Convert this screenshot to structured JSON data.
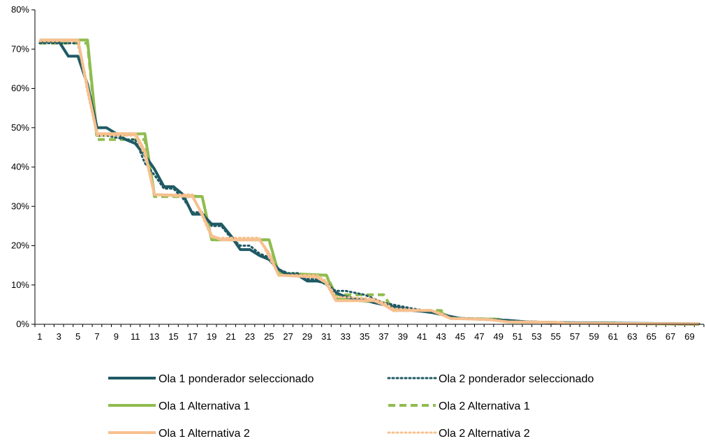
{
  "chart_data": {
    "type": "line",
    "title": "",
    "xlabel": "",
    "ylabel": "",
    "x_range": [
      1,
      70
    ],
    "ylim": [
      0,
      0.8
    ],
    "y_ticks": [
      "0%",
      "10%",
      "20%",
      "30%",
      "40%",
      "50%",
      "60%",
      "70%",
      "80%"
    ],
    "x_tick_labels": [
      "1",
      "3",
      "5",
      "7",
      "9",
      "11",
      "13",
      "15",
      "17",
      "19",
      "21",
      "23",
      "25",
      "27",
      "29",
      "31",
      "33",
      "35",
      "37",
      "39",
      "41",
      "43",
      "45",
      "47",
      "49",
      "51",
      "53",
      "55",
      "57",
      "59",
      "61",
      "63",
      "65",
      "67",
      "69"
    ],
    "grid": false,
    "legend_position": "bottom",
    "series": [
      {
        "name": "Ola 1 ponderador seleccionado",
        "color": "#1f5a64",
        "dash": "solid",
        "points": [
          [
            1,
            0.72
          ],
          [
            3,
            0.72
          ],
          [
            4,
            0.682
          ],
          [
            5,
            0.682
          ],
          [
            6,
            0.61
          ],
          [
            7,
            0.5
          ],
          [
            8,
            0.5
          ],
          [
            9,
            0.485
          ],
          [
            10,
            0.47
          ],
          [
            11,
            0.46
          ],
          [
            12,
            0.43
          ],
          [
            13,
            0.395
          ],
          [
            14,
            0.35
          ],
          [
            15,
            0.35
          ],
          [
            16,
            0.33
          ],
          [
            17,
            0.28
          ],
          [
            18,
            0.28
          ],
          [
            19,
            0.255
          ],
          [
            20,
            0.255
          ],
          [
            21,
            0.225
          ],
          [
            22,
            0.19
          ],
          [
            23,
            0.19
          ],
          [
            24,
            0.175
          ],
          [
            25,
            0.165
          ],
          [
            26,
            0.14
          ],
          [
            27,
            0.125
          ],
          [
            28,
            0.125
          ],
          [
            29,
            0.11
          ],
          [
            30,
            0.11
          ],
          [
            31,
            0.105
          ],
          [
            32,
            0.08
          ],
          [
            33,
            0.07
          ],
          [
            34,
            0.065
          ],
          [
            35,
            0.062
          ],
          [
            36,
            0.055
          ],
          [
            37,
            0.05
          ],
          [
            38,
            0.045
          ],
          [
            39,
            0.04
          ],
          [
            40,
            0.035
          ],
          [
            41,
            0.033
          ],
          [
            42,
            0.03
          ],
          [
            43,
            0.025
          ],
          [
            44,
            0.02
          ],
          [
            45,
            0.015
          ],
          [
            47,
            0.013
          ],
          [
            50,
            0.01
          ],
          [
            52,
            0.006
          ],
          [
            56,
            0.004
          ],
          [
            60,
            0.003
          ],
          [
            65,
            0.002
          ],
          [
            70,
            0.001
          ]
        ]
      },
      {
        "name": "Ola 2 ponderador seleccionado",
        "color": "#1f5a64",
        "dash": "dotted",
        "points": [
          [
            1,
            0.715
          ],
          [
            5,
            0.715
          ],
          [
            6,
            0.6
          ],
          [
            7,
            0.48
          ],
          [
            8,
            0.48
          ],
          [
            10,
            0.47
          ],
          [
            11,
            0.47
          ],
          [
            12,
            0.41
          ],
          [
            13,
            0.38
          ],
          [
            14,
            0.345
          ],
          [
            15,
            0.345
          ],
          [
            16,
            0.32
          ],
          [
            17,
            0.285
          ],
          [
            18,
            0.285
          ],
          [
            19,
            0.25
          ],
          [
            20,
            0.25
          ],
          [
            21,
            0.22
          ],
          [
            22,
            0.2
          ],
          [
            23,
            0.2
          ],
          [
            24,
            0.18
          ],
          [
            25,
            0.17
          ],
          [
            26,
            0.14
          ],
          [
            27,
            0.13
          ],
          [
            28,
            0.13
          ],
          [
            29,
            0.115
          ],
          [
            30,
            0.115
          ],
          [
            31,
            0.1
          ],
          [
            32,
            0.085
          ],
          [
            33,
            0.085
          ],
          [
            34,
            0.08
          ],
          [
            35,
            0.075
          ],
          [
            36,
            0.065
          ],
          [
            37,
            0.055
          ],
          [
            38,
            0.05
          ],
          [
            39,
            0.045
          ],
          [
            40,
            0.04
          ],
          [
            41,
            0.036
          ],
          [
            42,
            0.032
          ],
          [
            43,
            0.025
          ],
          [
            44,
            0.018
          ],
          [
            46,
            0.014
          ],
          [
            50,
            0.01
          ],
          [
            52,
            0.007
          ],
          [
            56,
            0.005
          ],
          [
            60,
            0.003
          ],
          [
            65,
            0.002
          ],
          [
            70,
            0.001
          ]
        ]
      },
      {
        "name": "Ola 1 Alternativa 1",
        "color": "#8fbc4f",
        "dash": "solid",
        "points": [
          [
            1,
            0.723
          ],
          [
            6,
            0.723
          ],
          [
            7,
            0.48
          ],
          [
            12,
            0.485
          ],
          [
            13,
            0.33
          ],
          [
            18,
            0.325
          ],
          [
            19,
            0.215
          ],
          [
            25,
            0.215
          ],
          [
            26,
            0.13
          ],
          [
            31,
            0.125
          ],
          [
            32,
            0.065
          ],
          [
            37,
            0.055
          ],
          [
            38,
            0.04
          ],
          [
            43,
            0.03
          ],
          [
            44,
            0.015
          ],
          [
            49,
            0.013
          ],
          [
            50,
            0.006
          ],
          [
            55,
            0.005
          ],
          [
            56,
            0.003
          ],
          [
            61,
            0.003
          ],
          [
            62,
            0.002
          ],
          [
            70,
            0.0
          ]
        ]
      },
      {
        "name": "Ola 2 Alternativa 1",
        "color": "#8fbc4f",
        "dash": "dashed",
        "points": [
          [
            1,
            0.715
          ],
          [
            6,
            0.715
          ],
          [
            7,
            0.47
          ],
          [
            12,
            0.47
          ],
          [
            13,
            0.325
          ],
          [
            18,
            0.325
          ],
          [
            19,
            0.215
          ],
          [
            25,
            0.215
          ],
          [
            26,
            0.125
          ],
          [
            31,
            0.125
          ],
          [
            32,
            0.075
          ],
          [
            37,
            0.075
          ],
          [
            38,
            0.035
          ],
          [
            43,
            0.035
          ],
          [
            44,
            0.015
          ],
          [
            49,
            0.013
          ],
          [
            50,
            0.006
          ],
          [
            55,
            0.005
          ],
          [
            56,
            0.003
          ],
          [
            61,
            0.003
          ],
          [
            62,
            0.002
          ],
          [
            70,
            0.0
          ]
        ]
      },
      {
        "name": "Ola 1 Alternativa 2",
        "color": "#f7c08f",
        "dash": "solid",
        "points": [
          [
            1,
            0.723
          ],
          [
            5,
            0.723
          ],
          [
            6,
            0.6
          ],
          [
            7,
            0.485
          ],
          [
            11,
            0.485
          ],
          [
            12,
            0.44
          ],
          [
            13,
            0.33
          ],
          [
            17,
            0.325
          ],
          [
            18,
            0.28
          ],
          [
            19,
            0.225
          ],
          [
            20,
            0.215
          ],
          [
            24,
            0.215
          ],
          [
            25,
            0.18
          ],
          [
            26,
            0.125
          ],
          [
            30,
            0.12
          ],
          [
            31,
            0.105
          ],
          [
            32,
            0.06
          ],
          [
            36,
            0.06
          ],
          [
            37,
            0.05
          ],
          [
            38,
            0.035
          ],
          [
            42,
            0.035
          ],
          [
            43,
            0.025
          ],
          [
            44,
            0.015
          ],
          [
            48,
            0.012
          ],
          [
            50,
            0.006
          ],
          [
            55,
            0.005
          ],
          [
            56,
            0.003
          ],
          [
            61,
            0.002
          ],
          [
            70,
            0.001
          ]
        ]
      },
      {
        "name": "Ola 2 Alternativa 2",
        "color": "#f7c08f",
        "dash": "dotted",
        "points": [
          [
            1,
            0.72
          ],
          [
            5,
            0.72
          ],
          [
            6,
            0.59
          ],
          [
            7,
            0.48
          ],
          [
            11,
            0.48
          ],
          [
            12,
            0.43
          ],
          [
            13,
            0.33
          ],
          [
            17,
            0.33
          ],
          [
            18,
            0.275
          ],
          [
            19,
            0.22
          ],
          [
            24,
            0.22
          ],
          [
            25,
            0.17
          ],
          [
            26,
            0.125
          ],
          [
            30,
            0.125
          ],
          [
            31,
            0.11
          ],
          [
            32,
            0.07
          ],
          [
            36,
            0.065
          ],
          [
            37,
            0.055
          ],
          [
            38,
            0.04
          ],
          [
            42,
            0.035
          ],
          [
            43,
            0.028
          ],
          [
            44,
            0.016
          ],
          [
            48,
            0.013
          ],
          [
            50,
            0.007
          ],
          [
            55,
            0.005
          ],
          [
            56,
            0.003
          ],
          [
            61,
            0.002
          ],
          [
            70,
            0.001
          ]
        ]
      }
    ]
  }
}
